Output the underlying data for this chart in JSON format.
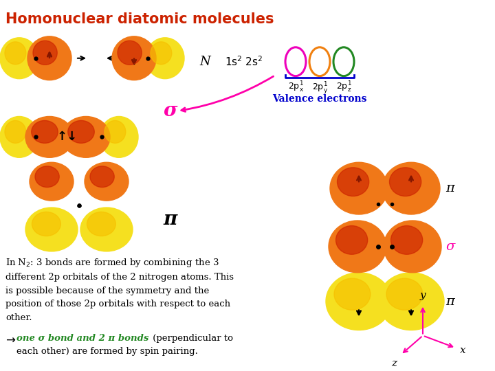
{
  "title": "Homonuclear diatomic molecules",
  "title_color": "#cc2200",
  "title_fontsize": 15,
  "bg_color": "#ffffff",
  "text_color": "#000000",
  "N_label": "N",
  "valence_text": "Valence electrons",
  "valence_color": "#0000cc",
  "sigma_color": "#ff00aa",
  "pi_color": "#000000",
  "body_text_color": "#000000",
  "arrow_text_color": "#228822",
  "orbital_yellow": "#f5e020",
  "orbital_orange": "#f07818",
  "orbital_red": "#cc2200",
  "arc_pink": "#ee00bb",
  "arc_orange": "#f08010",
  "arc_green": "#228822",
  "arc_blue": "#0000cc",
  "coord_color": "#ff00aa"
}
